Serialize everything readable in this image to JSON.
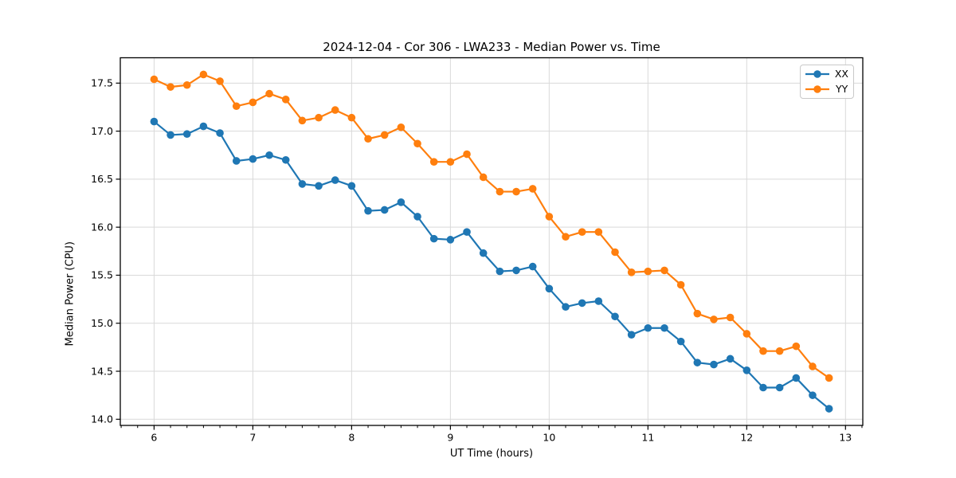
{
  "chart_data": {
    "type": "line",
    "title": "2024-12-04 - Cor 306 - LWA233 - Median Power vs. Time",
    "xlabel": "UT Time (hours)",
    "ylabel": "Median Power (CPU)",
    "xlim": [
      5.658,
      13.175
    ],
    "ylim": [
      13.936,
      17.764
    ],
    "x_ticks": [
      6,
      7,
      8,
      9,
      10,
      11,
      12,
      13
    ],
    "y_ticks": [
      14.0,
      14.5,
      15.0,
      15.5,
      16.0,
      16.5,
      17.0,
      17.5
    ],
    "minor_ticks_per_hour": 6,
    "grid": true,
    "grid_color": "#d9d9d9",
    "legend_position": "upper right",
    "x": [
      6.0,
      6.1667,
      6.3333,
      6.5,
      6.6667,
      6.8333,
      7.0,
      7.1667,
      7.3333,
      7.5,
      7.6667,
      7.8333,
      8.0,
      8.1667,
      8.3333,
      8.5,
      8.6667,
      8.8333,
      9.0,
      9.1667,
      9.3333,
      9.5,
      9.6667,
      9.8333,
      10.0,
      10.1667,
      10.3333,
      10.5,
      10.6667,
      10.8333,
      11.0,
      11.1667,
      11.3333,
      11.5,
      11.6667,
      11.8333,
      12.0,
      12.1667,
      12.3333,
      12.5,
      12.6667,
      12.8333
    ],
    "series": [
      {
        "name": "XX",
        "color": "#1f77b4",
        "values": [
          17.1,
          16.96,
          16.97,
          17.05,
          16.98,
          16.69,
          16.71,
          16.75,
          16.7,
          16.45,
          16.43,
          16.49,
          16.43,
          16.17,
          16.18,
          16.26,
          16.11,
          15.88,
          15.87,
          15.95,
          15.73,
          15.54,
          15.55,
          15.59,
          15.36,
          15.17,
          15.21,
          15.23,
          15.07,
          14.88,
          14.95,
          14.95,
          14.81,
          14.59,
          14.57,
          14.63,
          14.51,
          14.33,
          14.33,
          14.43,
          14.25,
          14.11
        ]
      },
      {
        "name": "YY",
        "color": "#ff7f0e",
        "values": [
          17.54,
          17.46,
          17.48,
          17.59,
          17.52,
          17.26,
          17.3,
          17.39,
          17.33,
          17.11,
          17.14,
          17.22,
          17.14,
          16.92,
          16.96,
          17.04,
          16.87,
          16.68,
          16.68,
          16.76,
          16.52,
          16.37,
          16.37,
          16.4,
          16.11,
          15.9,
          15.95,
          15.95,
          15.74,
          15.53,
          15.54,
          15.55,
          15.4,
          15.1,
          15.04,
          15.06,
          14.89,
          14.71,
          14.71,
          14.76,
          14.55,
          14.43
        ]
      }
    ]
  }
}
